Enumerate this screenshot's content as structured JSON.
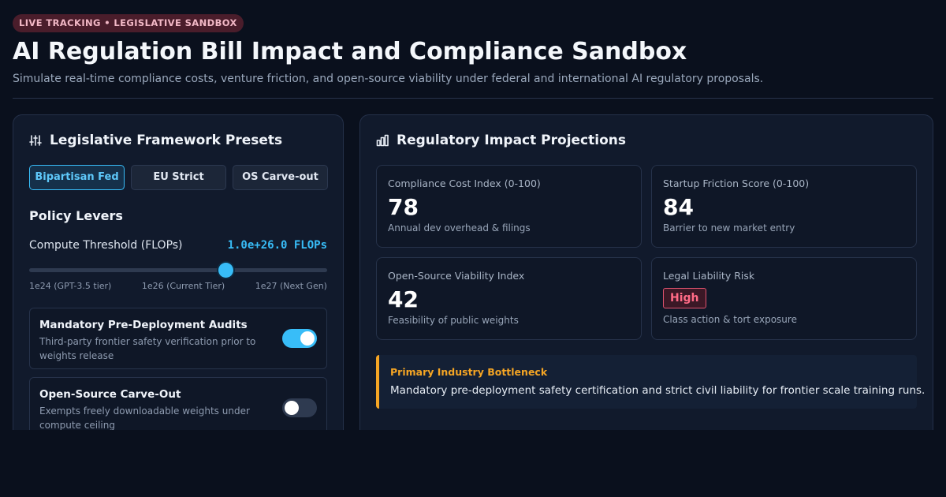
{
  "header": {
    "badge": "LIVE TRACKING • LEGISLATIVE SANDBOX",
    "title": "AI Regulation Bill Impact and Compliance Sandbox",
    "subtitle": "Simulate real-time compliance costs, venture friction, and open-source viability under federal and international AI regulatory proposals."
  },
  "left_panel": {
    "title": "Legislative Framework Presets",
    "icon": "sliders-icon",
    "presets": [
      {
        "label": "Bipartisan Fed",
        "active": true
      },
      {
        "label": "EU Strict",
        "active": false
      },
      {
        "label": "OS Carve-out",
        "active": false
      }
    ],
    "levers_title": "Policy Levers",
    "compute": {
      "label": "Compute Threshold (FLOPs)",
      "value": "1.0e+26.0 FLOPs",
      "slider_fraction": 0.66,
      "ticks": [
        "1e24 (GPT-3.5 tier)",
        "1e26 (Current Tier)",
        "1e27 (Next Gen)"
      ]
    },
    "toggles": [
      {
        "title": "Mandatory Pre-Deployment Audits",
        "desc": "Third-party frontier safety verification prior to weights release",
        "on": true
      },
      {
        "title": "Open-Source Carve-Out",
        "desc": "Exempts freely downloadable weights under compute ceiling",
        "on": false
      }
    ]
  },
  "right_panel": {
    "title": "Regulatory Impact Projections",
    "icon": "bar-chart-icon",
    "metrics": [
      {
        "label": "Compliance Cost Index (0-100)",
        "value": "78",
        "sub": "Annual dev overhead & filings"
      },
      {
        "label": "Startup Friction Score (0-100)",
        "value": "84",
        "sub": "Barrier to new market entry"
      },
      {
        "label": "Open-Source Viability Index",
        "value": "42",
        "sub": "Feasibility of public weights"
      },
      {
        "label": "Legal Liability Risk",
        "value": "High",
        "sub": "Class action & tort exposure"
      }
    ],
    "bottleneck": {
      "title": "Primary Industry Bottleneck",
      "text": "Mandatory pre-deployment safety certification and strict civil liability for frontier scale training runs."
    }
  },
  "colors": {
    "accent": "#38bdf8",
    "warning": "#f5a524",
    "danger": "#ff6b86",
    "background": "#0a101d"
  }
}
